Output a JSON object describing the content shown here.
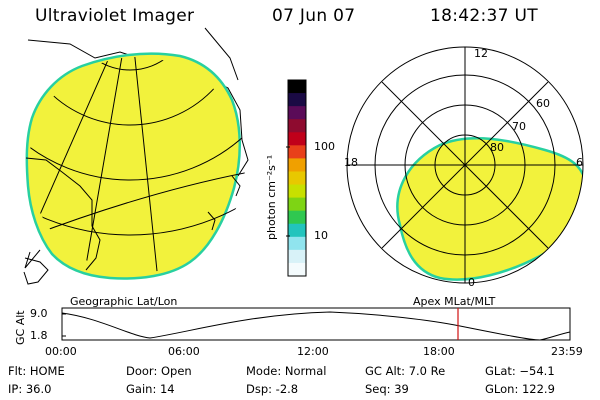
{
  "header": {
    "instrument": "Ultraviolet Imager",
    "date": "07 Jun 07",
    "time": "18:42:37 UT"
  },
  "colorbar": {
    "unit": "photon cm⁻²s⁻¹",
    "ticks": [
      "100",
      "10"
    ],
    "colors": [
      "#000000",
      "#1a0a44",
      "#5a0b58",
      "#8e0b2f",
      "#c0001a",
      "#e8401a",
      "#f0a000",
      "#e8c800",
      "#c8e000",
      "#7ed414",
      "#2fc850",
      "#22c4bd",
      "#90e4ee",
      "#d8f2f8",
      "#f4fbfd"
    ]
  },
  "geo_panel": {
    "label": "Geographic Lat/Lon",
    "fill_color": "#f2f23c",
    "edge_color": "#28d0a0"
  },
  "polar_panel": {
    "label": "Apex MLat/MLT",
    "ring_labels": [
      "60",
      "70",
      "80"
    ],
    "mlt_labels": {
      "top": "12",
      "bottom": "0",
      "left": "18",
      "right": "6"
    }
  },
  "alt_plot": {
    "ylabel": "GC Alt",
    "yticks": [
      "9.0",
      "1.8"
    ],
    "xticks": [
      "00:00",
      "06:00",
      "12:00",
      "18:00",
      "23:59"
    ],
    "cursor_time": "18:42",
    "cursor_color": "#d01010"
  },
  "info": {
    "flt": "Flt: HOME",
    "ip": "IP: 36.0",
    "door": "Door: Open",
    "gain": "Gain: 14",
    "mode": "Mode: Normal",
    "dsp": "Dsp:    -2.8",
    "gcalt": "GC Alt: 7.0 Re",
    "seq": "Seq: 39",
    "glat": "GLat: −54.1",
    "glon": "GLon: 122.9"
  }
}
